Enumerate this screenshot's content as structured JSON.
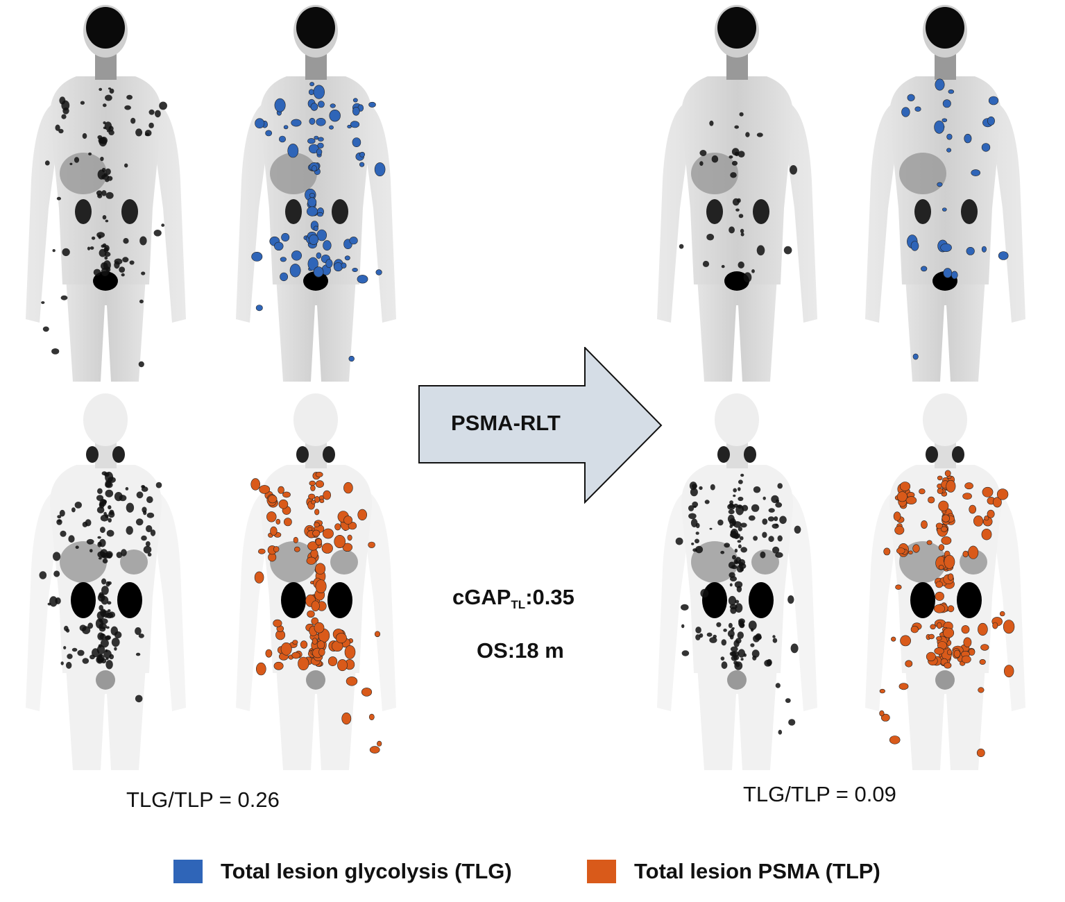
{
  "arrow": {
    "label": "PSMA-RLT",
    "fill": "#d5dde6"
  },
  "metrics": {
    "cgap_prefix": "cGAP",
    "cgap_subscript": "TL",
    "cgap_value": ":0.35",
    "os": "OS:18 m"
  },
  "ratios": {
    "baseline": "TLG/TLP = 0.26",
    "followup": "TLG/TLP = 0.09"
  },
  "legend": {
    "tlg": {
      "label": "Total lesion glycolysis (TLG)",
      "color": "#2f65b8"
    },
    "tlp": {
      "label": "Total lesion PSMA (TLP)",
      "color": "#d95a1a"
    }
  }
}
